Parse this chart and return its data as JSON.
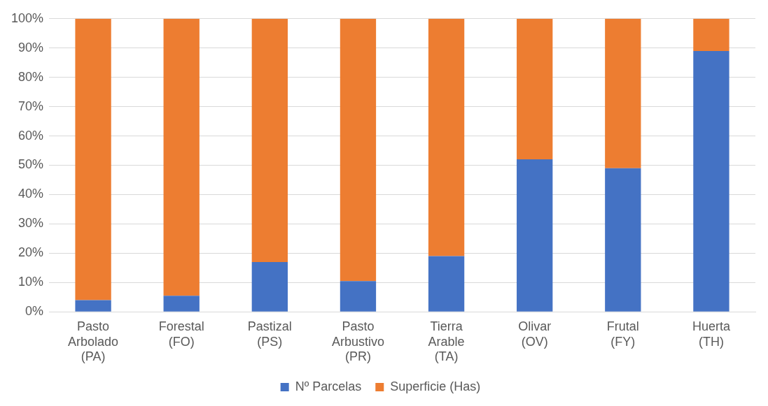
{
  "chart_data": {
    "type": "bar",
    "stacked": true,
    "categories": [
      "Pasto Arbolado (PA)",
      "Forestal (FO)",
      "Pastizal (PS)",
      "Pasto Arbustivo (PR)",
      "Tierra Arable (TA)",
      "Olivar (OV)",
      "Frutal (FY)",
      "Huerta (TH)"
    ],
    "series": [
      {
        "name": "Nº Parcelas",
        "color": "#4472c4",
        "values": [
          4,
          5.5,
          17,
          10.5,
          19,
          52,
          49,
          89
        ]
      },
      {
        "name": "Superficie (Has)",
        "color": "#ed7d31",
        "values": [
          96,
          94.5,
          83,
          89.5,
          81,
          48,
          51,
          11
        ]
      }
    ],
    "ylim": [
      0,
      100
    ],
    "yticks": [
      {
        "value": 0,
        "label": "0%"
      },
      {
        "value": 10,
        "label": "10%"
      },
      {
        "value": 20,
        "label": "20%"
      },
      {
        "value": 30,
        "label": "30%"
      },
      {
        "value": 40,
        "label": "40%"
      },
      {
        "value": 50,
        "label": "50%"
      },
      {
        "value": 60,
        "label": "60%"
      },
      {
        "value": 70,
        "label": "70%"
      },
      {
        "value": 80,
        "label": "80%"
      },
      {
        "value": 90,
        "label": "90%"
      },
      {
        "value": 100,
        "label": "100%"
      }
    ],
    "grid": "y",
    "legend": "bottom"
  }
}
